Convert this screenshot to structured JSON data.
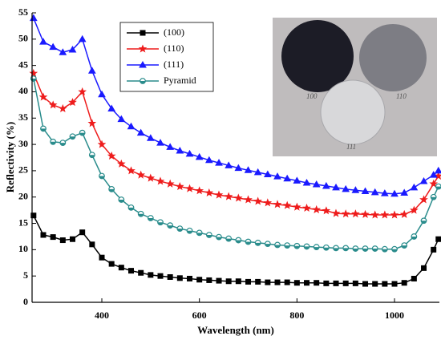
{
  "chart_data": {
    "type": "line",
    "xlabel": "Wavelength (nm)",
    "ylabel": "Reflectivity (%)",
    "x": [
      260,
      280,
      300,
      320,
      340,
      360,
      380,
      400,
      420,
      440,
      460,
      480,
      500,
      520,
      540,
      560,
      580,
      600,
      620,
      640,
      660,
      680,
      700,
      720,
      740,
      760,
      780,
      800,
      820,
      840,
      860,
      880,
      900,
      920,
      940,
      960,
      980,
      1000,
      1020,
      1040,
      1060,
      1080,
      1090
    ],
    "series": [
      {
        "name": "(100)",
        "color": "#000000",
        "marker": "square",
        "values": [
          16.5,
          12.8,
          12.4,
          11.8,
          12.0,
          13.3,
          11.0,
          8.5,
          7.3,
          6.6,
          6.0,
          5.6,
          5.2,
          5.0,
          4.8,
          4.6,
          4.5,
          4.3,
          4.2,
          4.1,
          4.0,
          4.0,
          3.9,
          3.9,
          3.8,
          3.8,
          3.8,
          3.7,
          3.7,
          3.7,
          3.6,
          3.6,
          3.6,
          3.6,
          3.5,
          3.5,
          3.5,
          3.5,
          3.7,
          4.5,
          6.5,
          10.0,
          12.0
        ]
      },
      {
        "name": "(110)",
        "color": "#ee1c1c",
        "marker": "star",
        "values": [
          43.5,
          39.0,
          37.5,
          36.8,
          38.0,
          40.0,
          34.0,
          30.0,
          27.8,
          26.3,
          25.0,
          24.2,
          23.6,
          23.0,
          22.5,
          22.0,
          21.6,
          21.2,
          20.8,
          20.4,
          20.1,
          19.8,
          19.5,
          19.2,
          18.9,
          18.6,
          18.4,
          18.1,
          17.9,
          17.6,
          17.4,
          16.9,
          16.8,
          16.8,
          16.7,
          16.6,
          16.6,
          16.6,
          16.7,
          17.5,
          19.5,
          22.5,
          24.0
        ]
      },
      {
        "name": "(111)",
        "color": "#1a1aff",
        "marker": "triangle",
        "values": [
          54.0,
          49.5,
          48.5,
          47.5,
          48.0,
          50.0,
          44.0,
          39.5,
          36.8,
          34.8,
          33.4,
          32.2,
          31.2,
          30.3,
          29.5,
          28.8,
          28.2,
          27.6,
          27.0,
          26.5,
          26.0,
          25.5,
          25.1,
          24.7,
          24.3,
          23.9,
          23.5,
          23.1,
          22.7,
          22.4,
          22.1,
          21.8,
          21.5,
          21.3,
          21.1,
          20.9,
          20.7,
          20.6,
          20.8,
          21.8,
          23.0,
          24.2,
          25.0
        ]
      },
      {
        "name": "Pyramid",
        "color": "#2a8c8c",
        "marker": "circle",
        "values": [
          42.5,
          33.0,
          30.5,
          30.3,
          31.5,
          32.2,
          28.0,
          24.0,
          21.5,
          19.5,
          18.0,
          16.8,
          16.0,
          15.2,
          14.6,
          14.0,
          13.6,
          13.2,
          12.8,
          12.4,
          12.1,
          11.8,
          11.5,
          11.3,
          11.1,
          10.9,
          10.8,
          10.7,
          10.6,
          10.5,
          10.4,
          10.3,
          10.3,
          10.2,
          10.2,
          10.2,
          10.1,
          10.1,
          10.8,
          12.5,
          15.5,
          20.0,
          22.0
        ]
      }
    ],
    "xlim": [
      257,
      1092
    ],
    "ylim": [
      0,
      55
    ],
    "xticks": [
      400,
      600,
      800,
      1000
    ],
    "yticks": [
      0,
      5,
      10,
      15,
      20,
      25,
      30,
      35,
      40,
      45,
      50,
      55
    ],
    "inset_labels": [
      "100",
      "110",
      "111"
    ]
  }
}
